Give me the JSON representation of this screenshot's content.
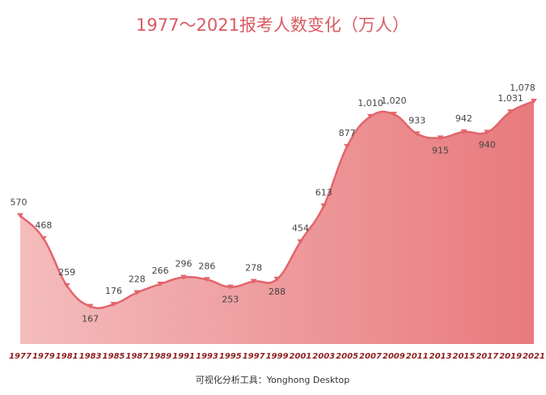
{
  "chart_data": {
    "type": "area",
    "title": "1977～2021报考人数变化（万人）",
    "categories": [
      "1977",
      "1979",
      "1981",
      "1983",
      "1985",
      "1987",
      "1989",
      "1991",
      "1993",
      "1995",
      "1997",
      "1999",
      "2001",
      "2003",
      "2005",
      "2007",
      "2009",
      "2011",
      "2013",
      "2015",
      "2017",
      "2019",
      "2021"
    ],
    "series": [
      {
        "name": "报考人数",
        "color": "#e2656b",
        "values": [
          570,
          468,
          259,
          167,
          176,
          228,
          266,
          296,
          286,
          253,
          278,
          288,
          454,
          613,
          877,
          1010,
          1020,
          933,
          915,
          942,
          940,
          1031,
          1078
        ],
        "value_labels": [
          "570",
          "468",
          "259",
          "167",
          "176",
          "228",
          "266",
          "296",
          "286",
          "253",
          "278",
          "288",
          "454",
          "613",
          "877",
          "1,010",
          "1,020",
          "933",
          "915",
          "942",
          "940",
          "1,031",
          "1,078"
        ]
      }
    ],
    "footnote": "可视化分析工具：Yonghong Desktop"
  }
}
